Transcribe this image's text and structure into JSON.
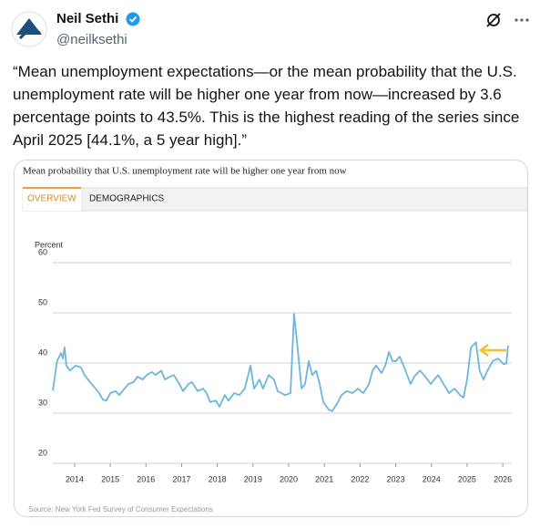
{
  "tweet": {
    "author": "Neil Sethi",
    "handle": "@neilksethi",
    "text": "“Mean unemployment expectations—or the mean probability that the U.S. unemployment rate will be higher one year from now—increased by 3.6 percentage points to 43.5%. This is the highest reading of the series since April 2025 [44.1%, a 5 year high].”"
  },
  "tabs": [
    "OVERVIEW",
    "DEMOGRAPHICS"
  ],
  "chart_data": {
    "type": "line",
    "title": "Mean probability that U.S. unemployment rate will be higher one year from now",
    "y_label": "Percent",
    "source": "Source: New York Fed Survey of Consumer Expectations",
    "x": [
      2013.39,
      2013.51,
      2013.62,
      2013.67,
      2013.72,
      2013.77,
      2013.87,
      2014.03,
      2014.18,
      2014.28,
      2014.43,
      2014.59,
      2014.69,
      2014.79,
      2014.89,
      2015.0,
      2015.15,
      2015.25,
      2015.4,
      2015.51,
      2015.66,
      2015.76,
      2015.91,
      2016.02,
      2016.17,
      2016.27,
      2016.43,
      2016.53,
      2016.68,
      2016.78,
      2016.94,
      2017.04,
      2017.19,
      2017.29,
      2017.45,
      2017.6,
      2017.7,
      2017.8,
      2017.96,
      2018.06,
      2018.21,
      2018.31,
      2018.47,
      2018.62,
      2018.77,
      2018.93,
      2019.03,
      2019.18,
      2019.28,
      2019.44,
      2019.59,
      2019.69,
      2019.8,
      2019.9,
      2020.05,
      2020.15,
      2020.25,
      2020.36,
      2020.46,
      2020.56,
      2020.66,
      2020.77,
      2020.87,
      2020.97,
      2021.12,
      2021.22,
      2021.38,
      2021.48,
      2021.63,
      2021.79,
      2021.94,
      2022.09,
      2022.25,
      2022.35,
      2022.45,
      2022.6,
      2022.71,
      2022.81,
      2022.91,
      2023.01,
      2023.11,
      2023.22,
      2023.32,
      2023.42,
      2023.52,
      2023.68,
      2023.83,
      2023.98,
      2024.08,
      2024.19,
      2024.34,
      2024.49,
      2024.65,
      2024.8,
      2024.9,
      2025.0,
      2025.11,
      2025.25,
      2025.35,
      2025.46,
      2025.57,
      2025.72,
      2025.87,
      2026.02,
      2026.1,
      2026.15
    ],
    "series": [
      {
        "name": "Mean probability",
        "color": "#6cb6dc",
        "values": [
          34.5,
          40.4,
          42.0,
          40.9,
          43.1,
          39.5,
          38.5,
          39.5,
          39.1,
          37.6,
          36.2,
          34.9,
          34.0,
          32.7,
          32.5,
          34.0,
          34.4,
          33.6,
          34.9,
          35.8,
          36.2,
          37.3,
          36.7,
          37.6,
          38.2,
          37.6,
          38.5,
          36.7,
          37.3,
          37.6,
          35.8,
          34.4,
          35.8,
          36.2,
          34.4,
          34.9,
          34.0,
          32.2,
          32.5,
          31.3,
          33.6,
          32.5,
          34.0,
          33.6,
          34.9,
          39.5,
          34.9,
          36.7,
          34.9,
          37.6,
          36.7,
          34.4,
          34.0,
          33.6,
          34.0,
          49.8,
          43.1,
          34.9,
          35.8,
          40.4,
          37.6,
          38.5,
          35.8,
          32.2,
          30.7,
          30.4,
          32.2,
          33.6,
          34.4,
          34.0,
          34.9,
          34.0,
          35.8,
          38.5,
          39.5,
          38.0,
          39.5,
          42.2,
          40.4,
          40.4,
          41.3,
          39.5,
          37.6,
          35.8,
          37.3,
          38.5,
          37.3,
          35.8,
          36.7,
          37.6,
          35.8,
          34.0,
          34.9,
          33.6,
          33.1,
          36.7,
          43.1,
          44.1,
          38.5,
          36.7,
          38.5,
          40.4,
          40.9,
          39.8,
          39.9,
          43.5
        ]
      }
    ],
    "xlim": [
      2013.39,
      2026.15
    ],
    "ylim": [
      20,
      60
    ],
    "xticks": [
      2014,
      2015,
      2016,
      2017,
      2018,
      2019,
      2020,
      2021,
      2022,
      2023,
      2024,
      2025,
      2026
    ],
    "yticks": [
      20,
      30,
      40,
      50,
      60
    ],
    "grid": true
  }
}
